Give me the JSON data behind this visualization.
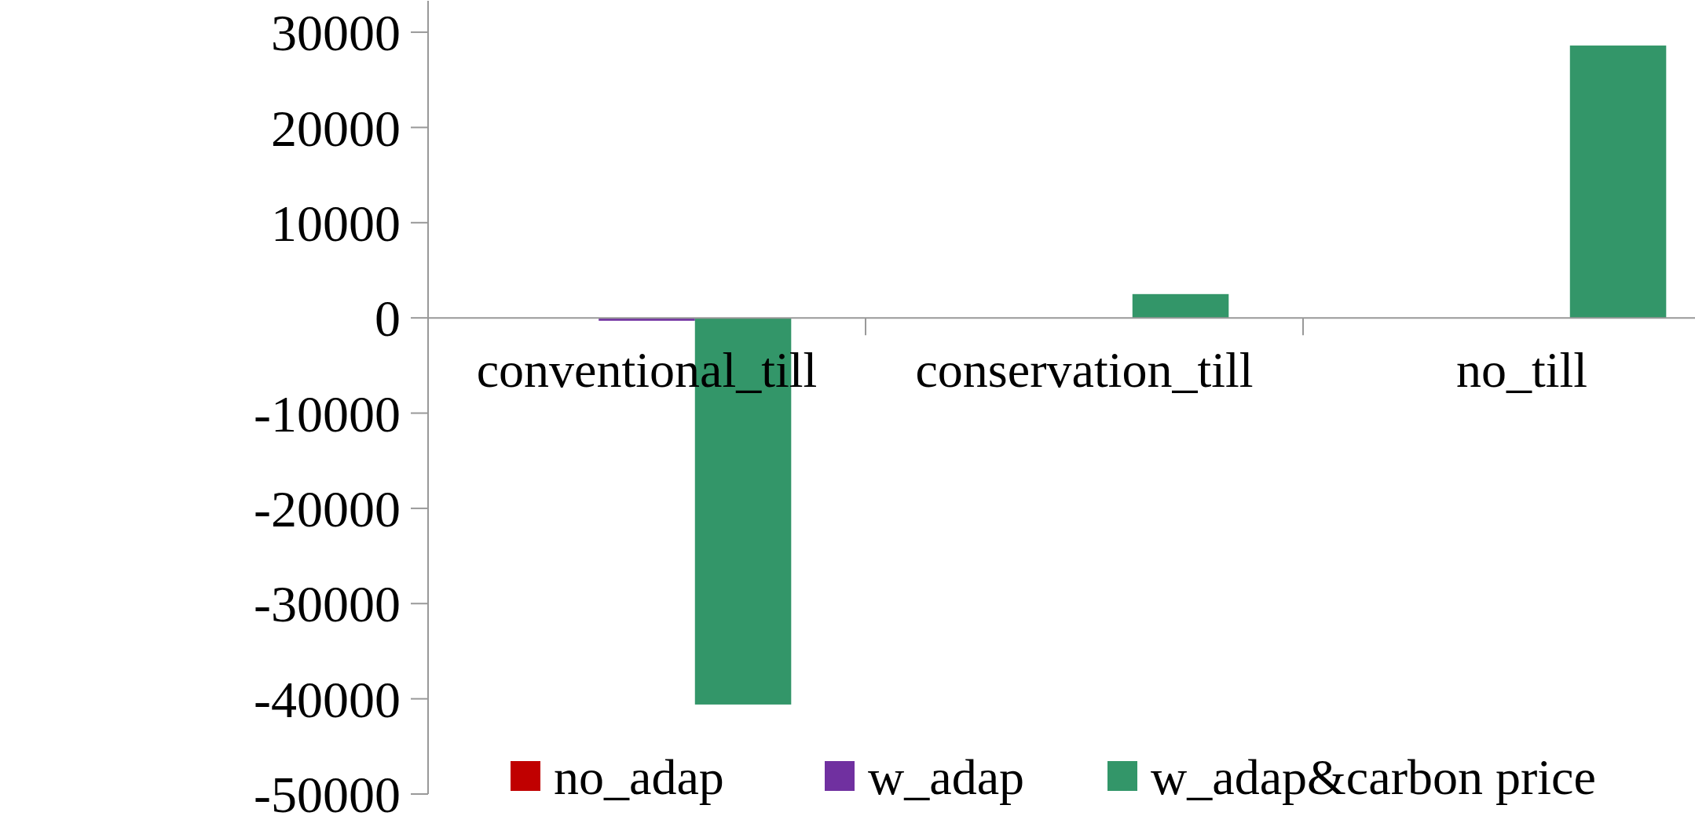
{
  "chart_data": {
    "type": "bar",
    "categories": [
      "conventional_till",
      "conservation_till",
      "no_till"
    ],
    "series": [
      {
        "name": "no_adap",
        "color": "#c00000",
        "values": [
          0,
          0,
          0
        ]
      },
      {
        "name": "w_adap",
        "color": "#7030a0",
        "values": [
          -300,
          0,
          0
        ]
      },
      {
        "name": "w_adap&carbon price",
        "color": "#339669",
        "values": [
          -40600,
          2500,
          28600
        ]
      }
    ],
    "ylim": [
      -50000,
      33300
    ],
    "yticks": [
      -50000,
      -40000,
      -30000,
      -20000,
      -10000,
      0,
      10000,
      20000,
      30000
    ],
    "grid": false,
    "legend": "bottom"
  }
}
